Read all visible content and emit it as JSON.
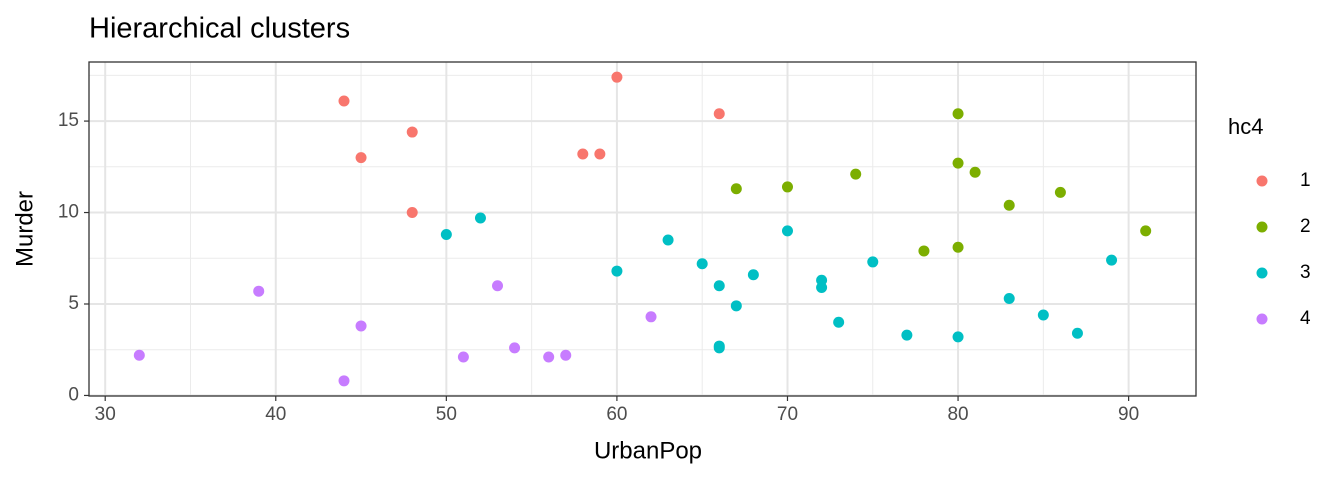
{
  "chart_data": {
    "type": "scatter",
    "title": "Hierarchical clusters",
    "x_label": "UrbanPop",
    "y_label": "Murder",
    "legend_title": "hc4",
    "xlim": [
      29.05,
      93.95
    ],
    "ylim": [
      -0.03,
      18.23
    ],
    "xticks": [
      30,
      40,
      50,
      60,
      70,
      80,
      90
    ],
    "yticks": [
      0,
      5,
      10,
      15
    ],
    "grid": true,
    "series": [
      {
        "name": "1",
        "color": "#F8766D",
        "x": [
          44,
          45,
          48,
          48,
          58,
          59,
          60,
          66
        ],
        "values": [
          16.1,
          13.0,
          14.4,
          10.0,
          13.2,
          13.2,
          17.4,
          15.4
        ]
      },
      {
        "name": "2",
        "color": "#7CAE00",
        "x": [
          67,
          70,
          74,
          78,
          80,
          80,
          80,
          81,
          83,
          86,
          91
        ],
        "values": [
          11.3,
          11.4,
          12.1,
          7.9,
          15.4,
          12.7,
          8.1,
          12.2,
          10.4,
          11.1,
          9.0
        ]
      },
      {
        "name": "3",
        "color": "#00BFC4",
        "x": [
          50,
          52,
          60,
          63,
          65,
          66,
          66,
          66,
          67,
          68,
          70,
          72,
          72,
          73,
          75,
          77,
          80,
          83,
          85,
          87,
          89
        ],
        "values": [
          8.8,
          9.7,
          6.8,
          8.5,
          7.2,
          6.0,
          2.6,
          2.7,
          4.9,
          6.6,
          9.0,
          6.3,
          5.9,
          4.0,
          7.3,
          3.3,
          3.2,
          5.3,
          4.4,
          3.4,
          7.4
        ]
      },
      {
        "name": "4",
        "color": "#C77CFF",
        "x": [
          32,
          39,
          44,
          45,
          51,
          53,
          54,
          56,
          57,
          62
        ],
        "values": [
          2.2,
          5.7,
          0.8,
          3.8,
          2.1,
          6.0,
          2.6,
          2.1,
          2.2,
          4.3
        ]
      }
    ]
  }
}
